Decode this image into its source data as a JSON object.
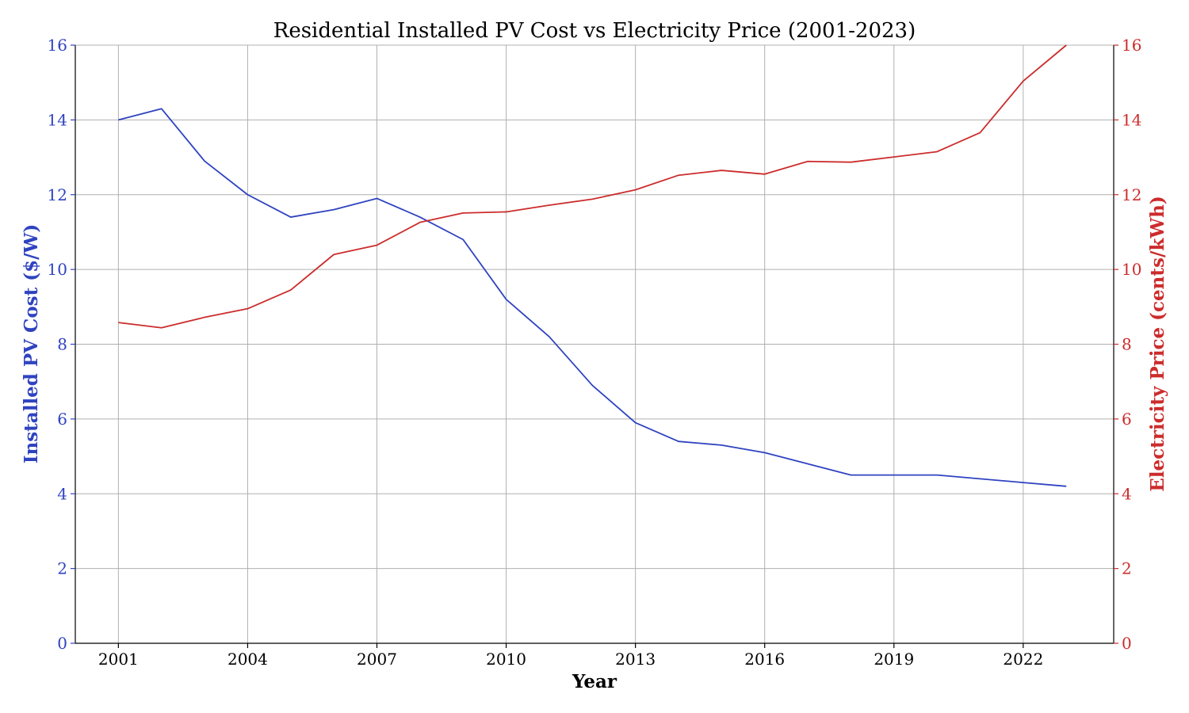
{
  "chart_data": {
    "type": "line",
    "title": "Residential Installed PV Cost vs Electricity Price (2001-2023)",
    "xlabel": "Year",
    "ylabel_left": "Installed PV Cost ($/W)",
    "ylabel_right": "Electricity Price (cents/kWh)",
    "x": [
      2001,
      2002,
      2003,
      2004,
      2005,
      2006,
      2007,
      2008,
      2009,
      2010,
      2011,
      2012,
      2013,
      2014,
      2015,
      2016,
      2017,
      2018,
      2019,
      2020,
      2021,
      2022,
      2023
    ],
    "xlim": [
      2000,
      2024.1
    ],
    "x_ticks": [
      2001,
      2004,
      2007,
      2010,
      2013,
      2016,
      2019,
      2022
    ],
    "ylim_left": [
      0,
      16
    ],
    "ylim_right": [
      0,
      16
    ],
    "y_ticks_left": [
      0,
      2,
      4,
      6,
      8,
      10,
      12,
      14,
      16
    ],
    "y_ticks_right": [
      0,
      2,
      4,
      6,
      8,
      10,
      12,
      14,
      16
    ],
    "grid": true,
    "legend": "none",
    "series": [
      {
        "axis": "left",
        "color": "#2f43c0",
        "values": [
          14.0,
          14.3,
          12.9,
          12.0,
          11.4,
          11.6,
          11.9,
          11.4,
          10.8,
          9.2,
          8.2,
          6.9,
          5.9,
          5.4,
          5.3,
          5.1,
          4.8,
          4.5,
          4.5,
          4.5,
          4.4,
          4.3,
          4.2
        ]
      },
      {
        "axis": "right",
        "color": "#cc2c2c",
        "values": [
          8.58,
          8.44,
          8.72,
          8.95,
          9.45,
          10.4,
          10.65,
          11.26,
          11.51,
          11.54,
          11.72,
          11.88,
          12.13,
          12.52,
          12.65,
          12.55,
          12.89,
          12.87,
          13.01,
          13.15,
          13.66,
          15.04,
          16.0
        ]
      }
    ]
  }
}
